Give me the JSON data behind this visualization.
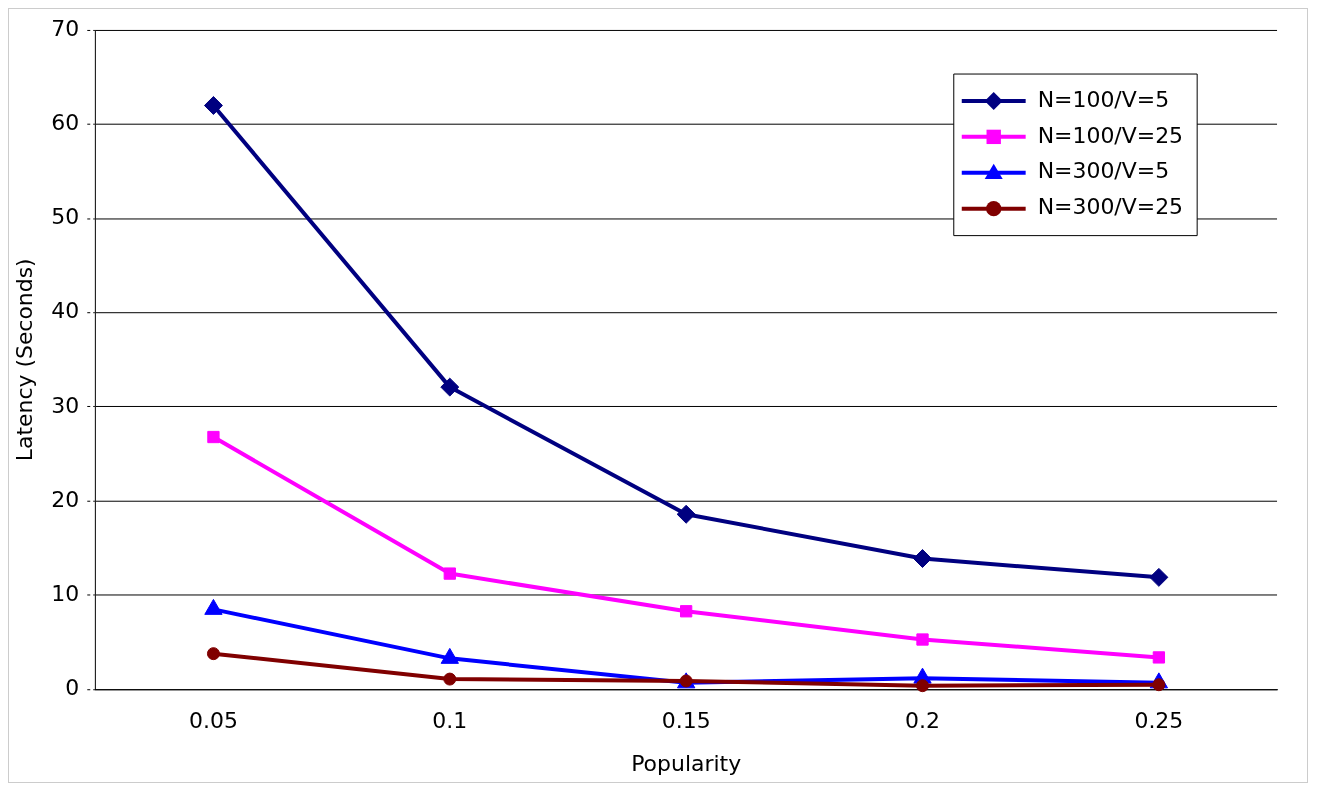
{
  "chart_data": {
    "type": "line",
    "xlabel": "Popularity",
    "ylabel": "Latency (Seconds)",
    "categories": [
      "0.05",
      "0.1",
      "0.15",
      "0.2",
      "0.25"
    ],
    "ylim": [
      0,
      70
    ],
    "yticks": [
      0,
      10,
      20,
      30,
      40,
      50,
      60,
      70
    ],
    "grid": "y",
    "legend": "top right",
    "line_style": "solid",
    "series": [
      {
        "name": "N=100/V=5",
        "color": "#000080",
        "marker": "diamond",
        "values": [
          62,
          32.1,
          18.6,
          13.9,
          11.9
        ]
      },
      {
        "name": "N=100/V=25",
        "color": "#ff00ff",
        "marker": "square",
        "values": [
          26.8,
          12.3,
          8.3,
          5.3,
          3.4
        ]
      },
      {
        "name": "N=300/V=5",
        "color": "#0000ff",
        "marker": "triangle",
        "values": [
          8.5,
          3.3,
          0.7,
          1.2,
          0.7
        ]
      },
      {
        "name": "N=300/V=25",
        "color": "#800000",
        "marker": "circle",
        "values": [
          3.8,
          1.1,
          0.9,
          0.4,
          0.5
        ]
      }
    ]
  }
}
